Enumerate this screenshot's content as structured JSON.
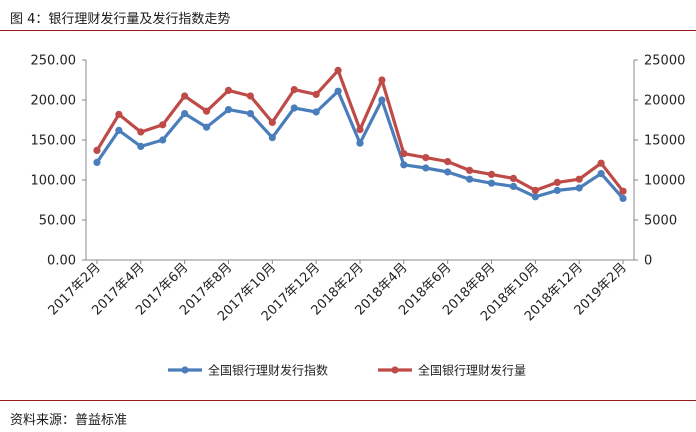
{
  "header": {
    "figure_title": "图 4：银行理财发行量及发行指数走势"
  },
  "footer": {
    "source": "资料来源：普益标准"
  },
  "colors": {
    "index": "#4a7ebb",
    "volume": "#be4b48",
    "axis": "#888888"
  },
  "chart_data": {
    "type": "line",
    "x": [
      "2017年2月",
      "2017年3月",
      "2017年4月",
      "2017年5月",
      "2017年6月",
      "2017年7月",
      "2017年8月",
      "2017年9月",
      "2017年10月",
      "2017年11月",
      "2017年12月",
      "2018年1月",
      "2018年2月",
      "2018年3月",
      "2018年4月",
      "2018年5月",
      "2018年6月",
      "2018年7月",
      "2018年8月",
      "2018年9月",
      "2018年10月",
      "2018年11月",
      "2018年12月",
      "2019年1月",
      "2019年2月"
    ],
    "x_tick_labels": [
      "2017年2月",
      "2017年4月",
      "2017年6月",
      "2017年8月",
      "2017年10月",
      "2017年12月",
      "2018年2月",
      "2018年4月",
      "2018年6月",
      "2018年8月",
      "2018年10月",
      "2018年12月",
      "2019年2月"
    ],
    "series": [
      {
        "name": "全国银行理财发行指数",
        "axis": "left",
        "values": [
          122,
          162,
          142,
          150,
          183,
          166,
          188,
          183,
          153,
          190,
          185,
          211,
          146,
          200,
          119,
          115,
          110,
          101,
          96,
          92,
          79,
          87,
          90,
          108,
          77
        ]
      },
      {
        "name": "全国银行理财发行量",
        "axis": "right",
        "values": [
          13700,
          18200,
          16000,
          16900,
          20500,
          18600,
          21200,
          20500,
          17200,
          21300,
          20700,
          23700,
          16300,
          22500,
          13300,
          12800,
          12300,
          11200,
          10700,
          10200,
          8700,
          9700,
          10100,
          12100,
          8600
        ]
      }
    ],
    "y_left": {
      "lim": [
        0,
        250
      ],
      "ticks": [
        "0.00",
        "50.00",
        "100.00",
        "150.00",
        "200.00",
        "250.00"
      ]
    },
    "y_right": {
      "lim": [
        0,
        25000
      ],
      "ticks": [
        "0",
        "5000",
        "10000",
        "15000",
        "20000",
        "25000"
      ]
    },
    "legend": "bottom-center"
  }
}
